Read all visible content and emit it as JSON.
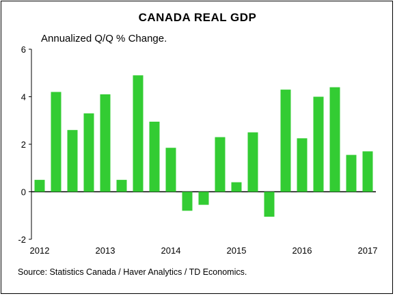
{
  "chart_data": {
    "type": "bar",
    "title": "CANADA REAL GDP",
    "subtitle": "Annualized Q/Q % Change.",
    "source": "Source: Statistics Canada / Haver Analytics / TD Economics.",
    "x": [
      "2012Q1",
      "2012Q2",
      "2012Q3",
      "2012Q4",
      "2013Q1",
      "2013Q2",
      "2013Q3",
      "2013Q4",
      "2014Q1",
      "2014Q2",
      "2014Q3",
      "2014Q4",
      "2015Q1",
      "2015Q2",
      "2015Q3",
      "2015Q4",
      "2016Q1",
      "2016Q2",
      "2016Q3",
      "2016Q4",
      "2017Q1"
    ],
    "values": [
      0.5,
      4.2,
      2.6,
      3.3,
      4.1,
      0.5,
      4.9,
      2.95,
      1.85,
      -0.8,
      -0.55,
      2.3,
      0.4,
      2.5,
      -1.05,
      4.3,
      2.25,
      4.0,
      4.4,
      1.55,
      1.7
    ],
    "x_tick_labels": [
      "2012",
      "2013",
      "2014",
      "2015",
      "2016",
      "2017"
    ],
    "y_tick_labels": [
      "-2",
      "0",
      "2",
      "4",
      "6"
    ],
    "ylim": [
      -2,
      6
    ],
    "bar_color": "#33cc33",
    "grid": false,
    "legend": "none"
  }
}
